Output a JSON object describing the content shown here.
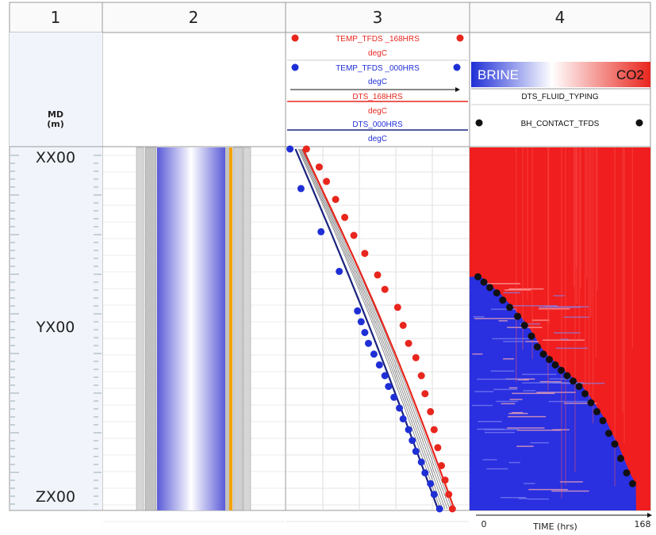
{
  "tracks": {
    "numbers": [
      "1",
      "2",
      "3",
      "4"
    ]
  },
  "track1": {
    "md_label_line1": "MD",
    "md_label_line2": "(m)",
    "depth_labels": [
      "XX00",
      "YX00",
      "ZX00"
    ]
  },
  "track3": {
    "legend": {
      "temp_168": "TEMP_TFDS _168HRS",
      "temp_168_unit": "degC",
      "temp_000": "TEMP_TFDS _000HRS",
      "temp_000_unit": "degC",
      "dts_168": "DTS_168HRS",
      "dts_168_unit": "degC",
      "dts_000": "DTS_000HRS",
      "dts_000_unit": "degC"
    }
  },
  "track4": {
    "brine_label": "BRINE",
    "co2_label": "CO2",
    "fluid_typing_label": "DTS_FLUID_TYPING",
    "bh_contact_label": "BH_CONTACT_TFDS",
    "time_axis": {
      "label": "TIME (hrs)",
      "min_label": "0",
      "max_label": "168"
    }
  },
  "colors": {
    "red": "#e8261e",
    "blue": "#1f2fd6",
    "navy": "#1a237e",
    "orange": "#f5a300",
    "gray": "#c8c8c8",
    "header_bg": "#f0f4fa"
  },
  "chart_data": {
    "type": "scatter",
    "title": "",
    "y_axis": {
      "label": "MD (m)",
      "ticks": [
        "XX00",
        "YX00",
        "ZX00"
      ],
      "direction": "depth increasing downward"
    },
    "grid": true,
    "track3_series": [
      {
        "name": "TEMP_TFDS _168HRS",
        "color": "red",
        "style": "markers",
        "points_depth_fraction": [
          0.0,
          0.05,
          0.09,
          0.14,
          0.19,
          0.24,
          0.29,
          0.35,
          0.39,
          0.44,
          0.49,
          0.54,
          0.58,
          0.63,
          0.68,
          0.73,
          0.78,
          0.83,
          0.88,
          0.92,
          0.96,
          1.0
        ],
        "x_fraction": [
          0.11,
          0.18,
          0.22,
          0.27,
          0.32,
          0.37,
          0.43,
          0.5,
          0.54,
          0.61,
          0.64,
          0.67,
          0.71,
          0.74,
          0.76,
          0.79,
          0.81,
          0.83,
          0.85,
          0.87,
          0.89,
          0.91
        ]
      },
      {
        "name": "TEMP_TFDS _000HRS",
        "color": "blue",
        "style": "markers",
        "points_depth_fraction": [
          0.0,
          0.11,
          0.23,
          0.34,
          0.45,
          0.48,
          0.51,
          0.54,
          0.57,
          0.6,
          0.63,
          0.66,
          0.69,
          0.72,
          0.75,
          0.78,
          0.81,
          0.84,
          0.87,
          0.9,
          0.93,
          0.96,
          1.0
        ],
        "x_fraction": [
          0.02,
          0.08,
          0.19,
          0.29,
          0.39,
          0.41,
          0.43,
          0.45,
          0.48,
          0.51,
          0.54,
          0.56,
          0.59,
          0.62,
          0.64,
          0.67,
          0.69,
          0.71,
          0.74,
          0.76,
          0.79,
          0.81,
          0.84
        ]
      },
      {
        "name": "DTS_168HRS",
        "color": "red",
        "style": "line",
        "x_start_fraction": 0.09,
        "x_end_fraction": 0.92
      },
      {
        "name": "DTS_000HRS",
        "color": "navy",
        "style": "line",
        "x_start_fraction": 0.05,
        "x_end_fraction": 0.83
      }
    ],
    "track4_bh_contact": {
      "name": "BH_CONTACT_TFDS",
      "x_time_hrs": [
        2,
        8,
        14,
        21,
        27,
        34,
        42,
        49,
        56,
        62,
        68,
        74,
        80,
        86,
        92,
        98,
        104,
        110,
        116,
        122,
        128,
        134,
        140,
        146,
        152,
        158
      ],
      "depth_fraction": [
        0.355,
        0.37,
        0.385,
        0.4,
        0.42,
        0.44,
        0.465,
        0.49,
        0.52,
        0.55,
        0.57,
        0.585,
        0.6,
        0.615,
        0.63,
        0.645,
        0.66,
        0.68,
        0.705,
        0.73,
        0.755,
        0.79,
        0.82,
        0.86,
        0.9,
        0.93
      ]
    }
  }
}
